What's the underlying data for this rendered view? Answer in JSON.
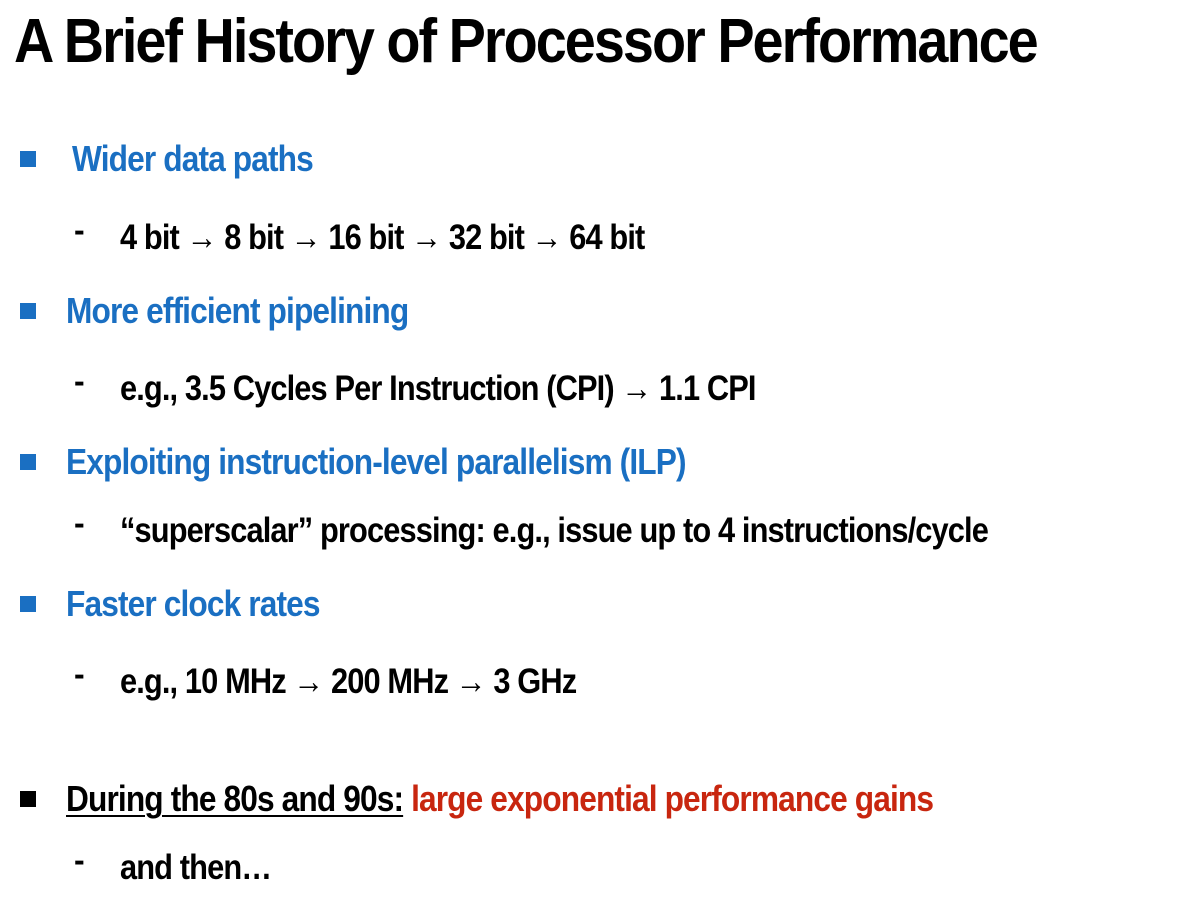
{
  "slide": {
    "title": "A Brief History of Processor Performance",
    "colors": {
      "accent_blue": "#1a6fc2",
      "highlight_red": "#c8260f",
      "text_black": "#000000"
    },
    "bullets": [
      {
        "text": "Wider data paths",
        "sub": "4 bit → 8 bit → 16 bit → 32 bit → 64 bit"
      },
      {
        "text": "More efficient pipelining",
        "sub": "e.g., 3.5 Cycles Per Instruction (CPI) → 1.1 CPI"
      },
      {
        "text": "Exploiting instruction-level parallelism (ILP)",
        "sub": "“superscalar” processing: e.g., issue up to 4 instructions/cycle"
      },
      {
        "text": "Faster clock rates",
        "sub": "e.g., 10 MHz → 200 MHz → 3 GHz"
      }
    ],
    "conclusion": {
      "lead": "During the 80s and 90s:",
      "highlight": "large exponential performance gains",
      "sub": "and then…"
    },
    "dash": "-"
  }
}
